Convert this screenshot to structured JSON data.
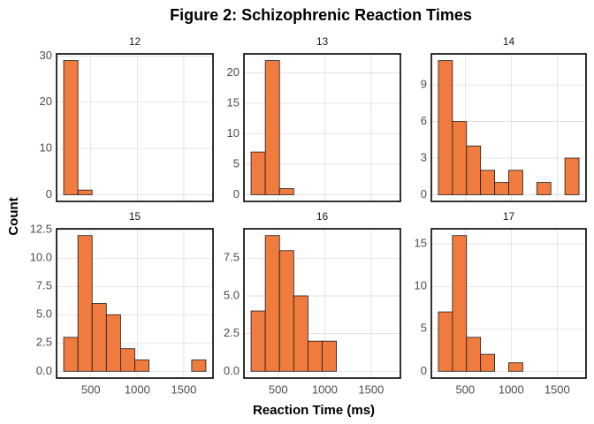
{
  "title": "Figure 2: Schizophrenic Reaction Times",
  "xlabel": "Reaction Time (ms)",
  "ylabel": "Count",
  "chart_data": [
    {
      "type": "histogram",
      "title": "12",
      "bins": [
        208,
        361,
        514,
        667,
        820,
        973,
        1126,
        1279,
        1432,
        1585,
        1738
      ],
      "values": [
        29,
        1,
        0,
        0,
        0,
        0,
        0,
        0,
        0,
        0
      ],
      "color": "#f07b3f",
      "xlim": [
        131.5,
        1814.5
      ],
      "xticks": [
        500,
        1000,
        1500
      ],
      "ylim": [
        -1.45,
        30.45
      ],
      "yticks": [
        0,
        10,
        20,
        30
      ],
      "grid": true
    },
    {
      "type": "histogram",
      "title": "13",
      "bins": [
        208,
        361,
        514,
        667,
        820,
        973,
        1126,
        1279,
        1432,
        1585,
        1738
      ],
      "values": [
        7,
        22,
        1,
        0,
        0,
        0,
        0,
        0,
        0,
        0
      ],
      "color": "#f07b3f",
      "xlim": [
        131.5,
        1814.5
      ],
      "xticks": [
        500,
        1000,
        1500
      ],
      "ylim": [
        -1.1,
        23.1
      ],
      "yticks": [
        0,
        5,
        10,
        15,
        20
      ],
      "grid": true
    },
    {
      "type": "histogram",
      "title": "14",
      "bins": [
        208,
        361,
        514,
        667,
        820,
        973,
        1126,
        1279,
        1432,
        1585,
        1738
      ],
      "values": [
        11,
        6,
        4,
        2,
        1,
        2,
        0,
        1,
        0,
        3
      ],
      "color": "#f07b3f",
      "xlim": [
        131.5,
        1814.5
      ],
      "xticks": [
        500,
        1000,
        1500
      ],
      "ylim": [
        -0.55,
        11.55
      ],
      "yticks": [
        0,
        3,
        6,
        9
      ],
      "grid": true
    },
    {
      "type": "histogram",
      "title": "15",
      "bins": [
        208,
        361,
        514,
        667,
        820,
        973,
        1126,
        1279,
        1432,
        1585,
        1738
      ],
      "values": [
        3,
        12,
        6,
        5,
        2,
        1,
        0,
        0,
        0,
        1
      ],
      "color": "#f07b3f",
      "xlim": [
        131.5,
        1814.5
      ],
      "xticks": [
        500,
        1000,
        1500
      ],
      "ylim": [
        -0.6,
        12.6
      ],
      "yticks": [
        {
          "value": 0,
          "label": "0.0"
        },
        2.5,
        {
          "value": 5,
          "label": "5.0"
        },
        7.5,
        {
          "value": 10,
          "label": "10.0"
        },
        12.5
      ],
      "grid": true
    },
    {
      "type": "histogram",
      "title": "16",
      "bins": [
        208,
        361,
        514,
        667,
        820,
        973,
        1126,
        1279,
        1432,
        1585,
        1738
      ],
      "values": [
        4,
        9,
        8,
        5,
        2,
        2,
        0,
        0,
        0,
        0
      ],
      "color": "#f07b3f",
      "xlim": [
        131.5,
        1814.5
      ],
      "xticks": [
        500,
        1000,
        1500
      ],
      "ylim": [
        -0.45,
        9.45
      ],
      "yticks": [
        {
          "value": 0,
          "label": "0.0"
        },
        2.5,
        {
          "value": 5,
          "label": "5.0"
        },
        7.5
      ],
      "grid": true
    },
    {
      "type": "histogram",
      "title": "17",
      "bins": [
        208,
        361,
        514,
        667,
        820,
        973,
        1126,
        1279,
        1432,
        1585,
        1738
      ],
      "values": [
        7,
        16,
        4,
        2,
        0,
        1,
        0,
        0,
        0,
        0
      ],
      "color": "#f07b3f",
      "xlim": [
        131.5,
        1814.5
      ],
      "xticks": [
        500,
        1000,
        1500
      ],
      "ylim": [
        -0.8,
        16.8
      ],
      "yticks": [
        0,
        5,
        10,
        15
      ],
      "grid": true
    }
  ]
}
